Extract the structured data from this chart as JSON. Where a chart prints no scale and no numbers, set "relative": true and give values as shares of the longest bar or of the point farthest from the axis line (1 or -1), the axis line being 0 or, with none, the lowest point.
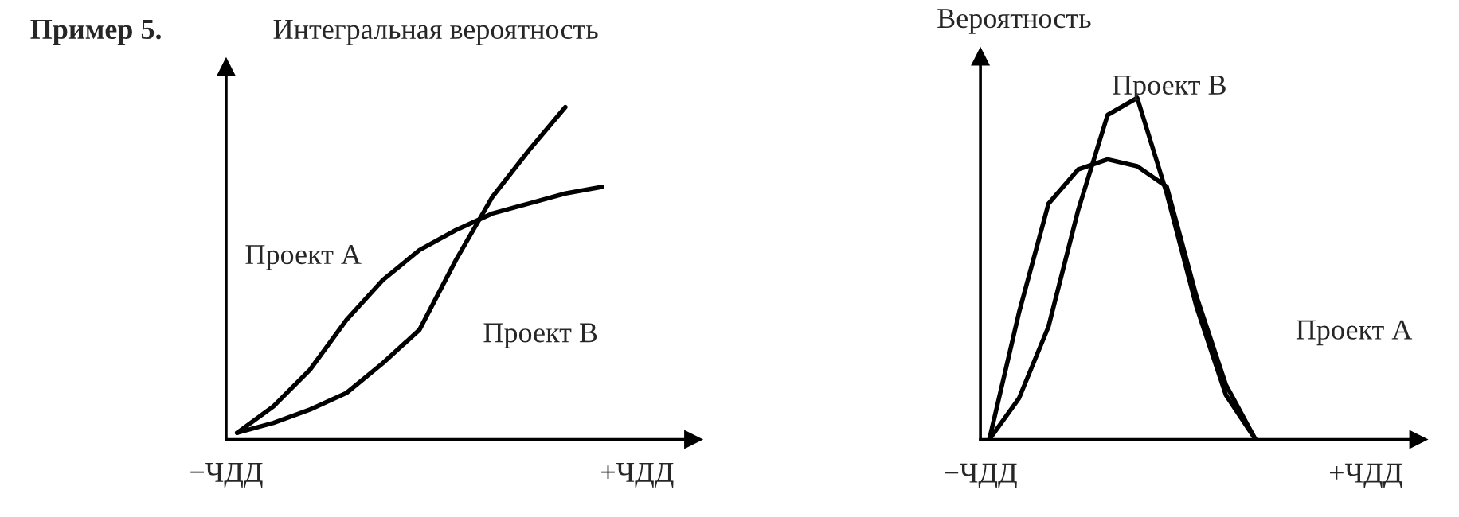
{
  "chart_data": [
    {
      "type": "line",
      "title": "Пример 5.",
      "ylabel": "Интегральная вероятность",
      "relative": true,
      "annotations": [
        "−ЧДД",
        "+ЧДД"
      ],
      "grid": false,
      "legend": false,
      "marker": "none",
      "line_style": "solid",
      "categories": [
        null,
        null,
        null,
        null,
        null,
        null,
        null,
        null,
        null,
        null,
        null,
        null,
        null
      ],
      "series": [
        {
          "name": "Проект А",
          "color": "#000000",
          "values": [
            0.02,
            0.1,
            0.21,
            0.36,
            0.48,
            0.57,
            0.63,
            0.68,
            0.71,
            0.74,
            0.76,
            null,
            null
          ]
        },
        {
          "name": "Проект В",
          "color": "#000000",
          "values": [
            0.02,
            0.05,
            0.09,
            0.14,
            0.23,
            0.33,
            0.54,
            0.73,
            0.87,
            1.0,
            null,
            null,
            null
          ]
        }
      ]
    },
    {
      "type": "line",
      "ylabel": "Вероятность",
      "relative": true,
      "annotations": [
        "−ЧДД",
        "+ЧДД"
      ],
      "grid": false,
      "legend": false,
      "marker": "none",
      "line_style": "solid",
      "categories": [
        null,
        null,
        null,
        null,
        null,
        null,
        null,
        null,
        null,
        null,
        null,
        null,
        null,
        null,
        null
      ],
      "series": [
        {
          "name": "Проект А",
          "color": "#000000",
          "values": [
            0.0,
            0.37,
            0.69,
            0.79,
            0.82,
            0.8,
            0.74,
            0.42,
            0.16,
            0.0,
            null,
            null,
            null,
            null,
            null
          ]
        },
        {
          "name": "Проект В",
          "color": "#000000",
          "values": [
            0.0,
            0.12,
            0.33,
            0.67,
            0.95,
            1.0,
            0.72,
            0.39,
            0.13,
            0.0,
            null,
            null,
            null,
            null,
            null
          ]
        }
      ]
    }
  ]
}
